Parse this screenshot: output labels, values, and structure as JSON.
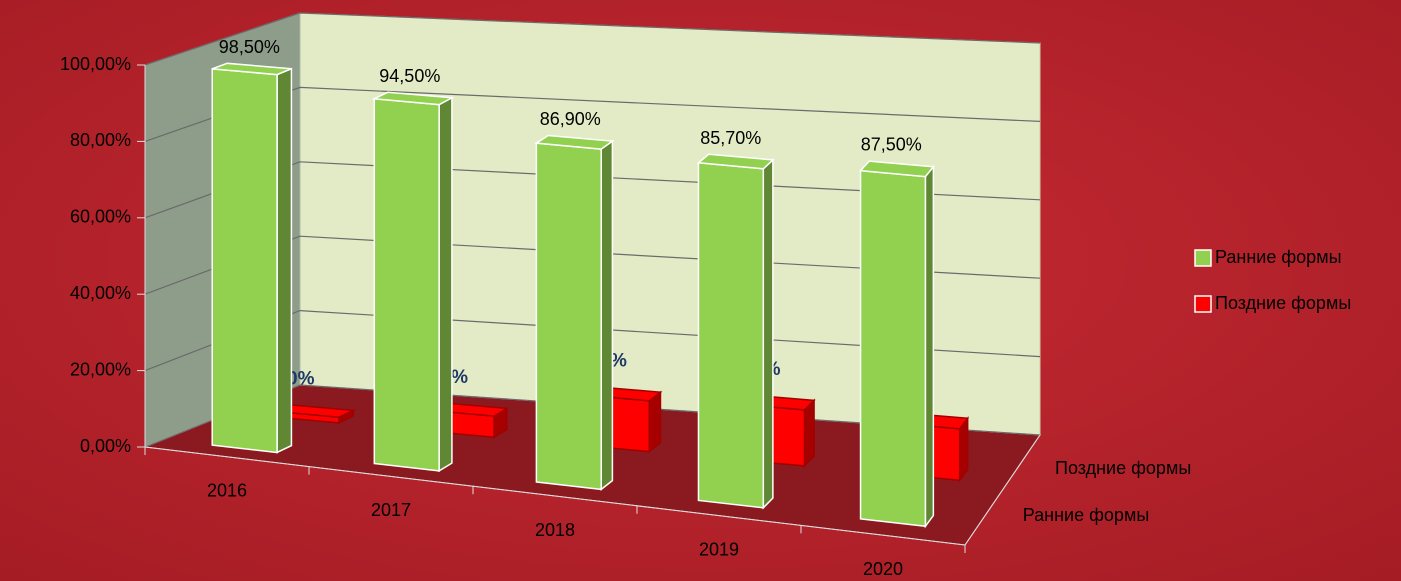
{
  "chart_data": {
    "type": "bar3d",
    "categories": [
      "2016",
      "2017",
      "2018",
      "2019",
      "2020"
    ],
    "series": [
      {
        "name": "Ранние формы",
        "color": "#92d050",
        "values": [
          98.5,
          94.5,
          86.9,
          85.7,
          87.5
        ],
        "value_labels": [
          "98,50%",
          "94,50%",
          "86,90%",
          "85,70%",
          "87,50%"
        ]
      },
      {
        "name": "Поздние формы",
        "color": "#ff0000",
        "values": [
          1.5,
          5.5,
          13.1,
          14.3,
          13.0
        ],
        "value_labels": [
          "1,50%",
          "5,50%",
          "13,10%",
          "14,30%",
          "13,00%"
        ]
      }
    ],
    "ylim": [
      0,
      100
    ],
    "yticks": [
      {
        "value": 0,
        "label": "0,00%"
      },
      {
        "value": 20,
        "label": "20,00%"
      },
      {
        "value": 40,
        "label": "40,00%"
      },
      {
        "value": 60,
        "label": "60,00%"
      },
      {
        "value": 80,
        "label": "80,00%"
      },
      {
        "value": 100,
        "label": "100,00%"
      }
    ],
    "grid": true,
    "legend": "right"
  }
}
